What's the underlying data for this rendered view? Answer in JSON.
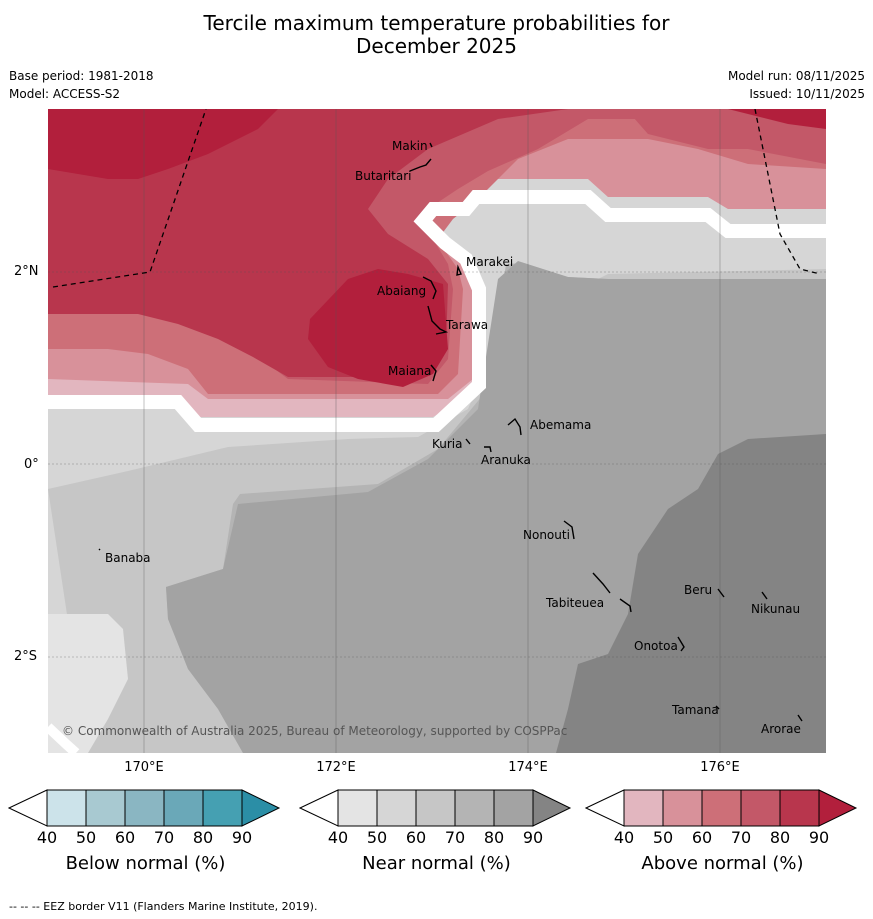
{
  "title_line1": "Tercile maximum temperature probabilities for",
  "title_line2": "December 2025",
  "meta": {
    "base_period": "Base period: 1981-2018",
    "model": "Model: ACCESS-S2",
    "model_run": "Model run: 08/11/2025",
    "issued": "Issued: 10/11/2025"
  },
  "axes": {
    "lat_labels": [
      "2°N",
      "0°",
      "2°S"
    ],
    "lon_labels": [
      "170°E",
      "172°E",
      "174°E",
      "176°E"
    ]
  },
  "places": {
    "makin": "Makin",
    "butaritari": "Butaritari",
    "marakei": "Marakei",
    "abaiang": "Abaiang",
    "tarawa": "Tarawa",
    "maiana": "Maiana",
    "abemama": "Abemama",
    "kuria": "Kuria",
    "aranuka": "Aranuka",
    "banaba": "Banaba",
    "nonouti": "Nonouti",
    "beru": "Beru",
    "nikunau": "Nikunau",
    "tabiteuea": "Tabiteuea",
    "onotoa": "Onotoa",
    "tamana": "Tamana",
    "arorae": "Arorae"
  },
  "copyright": "© Commonwealth of Australia 2025, Bureau of Meteorology, supported by COSPPac",
  "colorbars": {
    "tick_values": [
      40,
      50,
      60,
      70,
      80,
      90
    ],
    "below": {
      "label": "Below normal (%)",
      "colors": [
        "#ffffff",
        "#cce3ea",
        "#a8c9d1",
        "#8ab6c2",
        "#6aa8b8",
        "#45a0b2",
        "#2b8ea6"
      ]
    },
    "near": {
      "label": "Near normal (%)",
      "colors": [
        "#ffffff",
        "#e4e4e4",
        "#d6d6d6",
        "#c6c6c6",
        "#b4b4b4",
        "#a3a3a3",
        "#848484"
      ]
    },
    "above": {
      "label": "Above normal (%)",
      "colors": [
        "#ffffff",
        "#e2b6bf",
        "#d8919a",
        "#cd6f78",
        "#c35868",
        "#b8364d",
        "#b21f3c"
      ]
    }
  },
  "footer": "--  --  -- EEZ border V11 (Flanders Marine Institute, 2019)."
}
